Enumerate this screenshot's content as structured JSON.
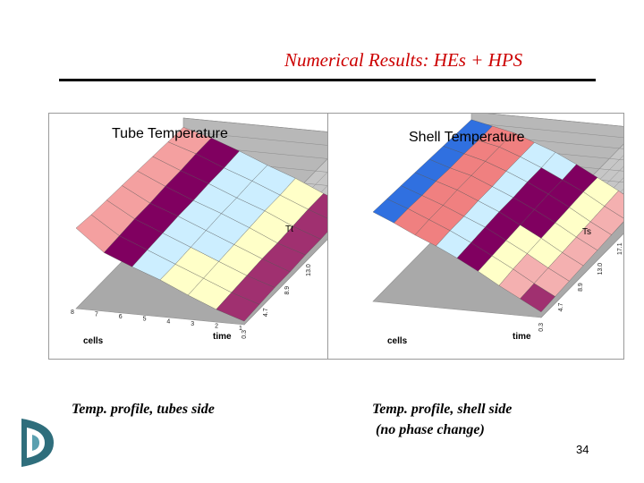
{
  "slide": {
    "title": "Numerical Results: HEs + HPS",
    "page_number": "34",
    "logo_icon": "company-logo-icon",
    "title_color": "#cc0000"
  },
  "captions": {
    "tube": "Temp. profile, tubes side",
    "shell_line1": "Temp. profile, shell side",
    "shell_line2": "(no phase change)"
  },
  "chart_data": [
    {
      "type": "surface",
      "title": "Tube Temperature",
      "xlabel": "time",
      "ylabel": "cells",
      "zlabel": "Tt",
      "x_ticks": [
        "0.3",
        "4.7",
        "8.9",
        "13.0",
        "17.1",
        "21.3"
      ],
      "y_ticks": [
        "8",
        "7",
        "6",
        "5",
        "4",
        "3",
        "2",
        "1"
      ],
      "z_ticks": [
        "300",
        "280",
        "270",
        "260",
        "250",
        "240",
        "230"
      ],
      "zlim": [
        230,
        300
      ],
      "band_colors": [
        "#f4a0a0",
        "#800060",
        "#cceeff",
        "#ffffc8",
        "#a03070"
      ],
      "grid": true,
      "surface": [
        [
          300,
          281,
          271,
          262,
          251,
          241,
          233
        ],
        [
          298,
          282,
          272,
          262,
          252,
          242,
          234
        ],
        [
          297,
          283,
          273,
          263,
          253,
          243,
          235
        ],
        [
          296,
          283,
          274,
          264,
          254,
          244,
          235
        ],
        [
          295,
          284,
          274,
          265,
          255,
          244,
          236
        ],
        [
          294,
          284,
          275,
          265,
          256,
          245,
          236
        ],
        [
          293,
          285,
          275,
          266,
          256,
          246,
          237
        ],
        [
          292,
          285,
          276,
          266,
          257,
          246,
          237
        ]
      ]
    },
    {
      "type": "surface",
      "title": "Shell Temperature",
      "xlabel": "time",
      "ylabel": "cells",
      "zlabel": "Ts",
      "x_ticks": [
        "0.3",
        "4.7",
        "8.9",
        "13.0",
        "17.1",
        "21.3"
      ],
      "y_ticks": [],
      "z_ticks": [
        "310",
        "300",
        "290",
        "280",
        "270",
        "260",
        "250",
        "240",
        "230"
      ],
      "zlim": [
        230,
        310
      ],
      "band_colors": [
        "#3070e0",
        "#f08080",
        "#cceeff",
        "#800060",
        "#ffffc8",
        "#f4b0b0",
        "#a03070"
      ],
      "grid": true,
      "surface": [
        [
          310,
          302,
          293,
          285,
          276,
          266,
          255,
          245,
          235
        ],
        [
          309,
          302,
          294,
          286,
          277,
          267,
          257,
          246,
          236
        ],
        [
          308,
          301,
          294,
          286,
          278,
          268,
          258,
          247,
          237
        ],
        [
          307,
          301,
          295,
          287,
          279,
          269,
          259,
          248,
          238
        ],
        [
          306,
          300,
          295,
          287,
          279,
          270,
          260,
          249,
          239
        ],
        [
          305,
          300,
          295,
          288,
          280,
          271,
          261,
          250,
          240
        ],
        [
          304,
          299,
          295,
          288,
          280,
          271,
          262,
          251,
          241
        ],
        [
          303,
          299,
          295,
          288,
          281,
          272,
          262,
          252,
          241
        ]
      ]
    }
  ]
}
